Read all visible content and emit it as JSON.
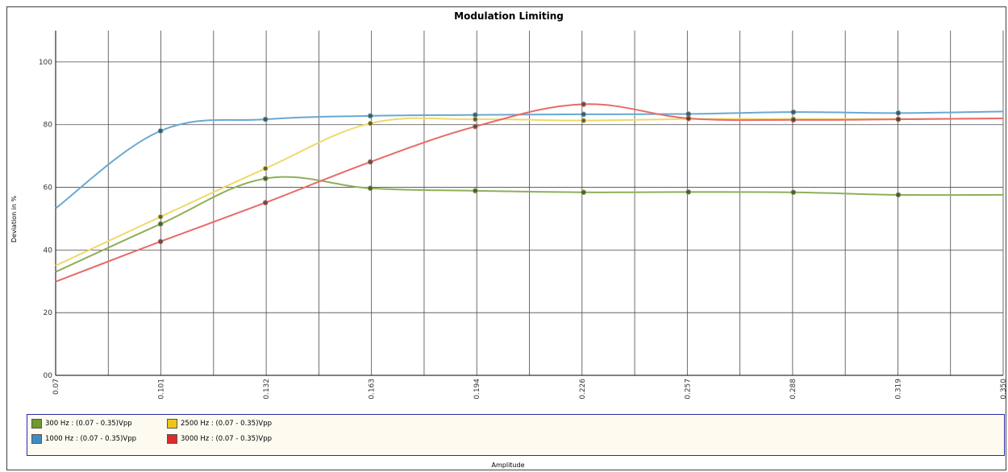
{
  "chart_data": {
    "type": "line",
    "title": "Modulation Limiting",
    "xlabel": "Amplitude",
    "ylabel": "Deviation in %",
    "x_ticks": [
      "0.07",
      "0.101",
      "0.132",
      "0.163",
      "0.194",
      "0.226",
      "0.257",
      "0.288",
      "0.319",
      "0.350"
    ],
    "xlim": [
      0.07,
      0.35
    ],
    "ylim": [
      0,
      110
    ],
    "y_ticks": [
      0,
      20,
      40,
      60,
      80,
      100
    ],
    "y_tick_labels": [
      "00",
      "20",
      "40",
      "60",
      "80",
      "100"
    ],
    "grid": true,
    "legend_position": "bottom",
    "series": [
      {
        "name": "300 Hz : (0.07 - 0.35)Vpp",
        "color": "#8db058",
        "swatch": "#6e9a2e",
        "x": [
          0.07,
          0.101,
          0.132,
          0.163,
          0.194,
          0.226,
          0.257,
          0.288,
          0.319,
          0.35
        ],
        "y": [
          33,
          48.3,
          62.8,
          59.7,
          58.9,
          58.4,
          58.5,
          58.4,
          57.6,
          57.6
        ]
      },
      {
        "name": "1000 Hz : (0.07 - 0.35)Vpp",
        "color": "#6aa8d0",
        "swatch": "#3f8cc4",
        "x": [
          0.07,
          0.101,
          0.132,
          0.163,
          0.194,
          0.226,
          0.257,
          0.288,
          0.319,
          0.35
        ],
        "y": [
          53.3,
          78,
          81.7,
          82.8,
          83.1,
          83.3,
          83.4,
          84,
          83.7,
          84.2
        ]
      },
      {
        "name": "2500 Hz : (0.07 - 0.35)Vpp",
        "color": "#efd96a",
        "swatch": "#f0c419",
        "x": [
          0.07,
          0.101,
          0.132,
          0.163,
          0.194,
          0.226,
          0.257,
          0.288,
          0.319,
          0.35
        ],
        "y": [
          35,
          50.6,
          66,
          80.4,
          81.7,
          81.3,
          81.8,
          81.8,
          81.8,
          82
        ]
      },
      {
        "name": "3000 Hz : (0.07 - 0.35)Vpp",
        "color": "#e86a6a",
        "swatch": "#dd2b2b",
        "x": [
          0.07,
          0.101,
          0.132,
          0.163,
          0.194,
          0.226,
          0.257,
          0.288,
          0.319,
          0.35
        ],
        "y": [
          29.9,
          42.7,
          55.1,
          68.1,
          79.4,
          86.5,
          82,
          81.5,
          81.7,
          82
        ]
      }
    ]
  }
}
